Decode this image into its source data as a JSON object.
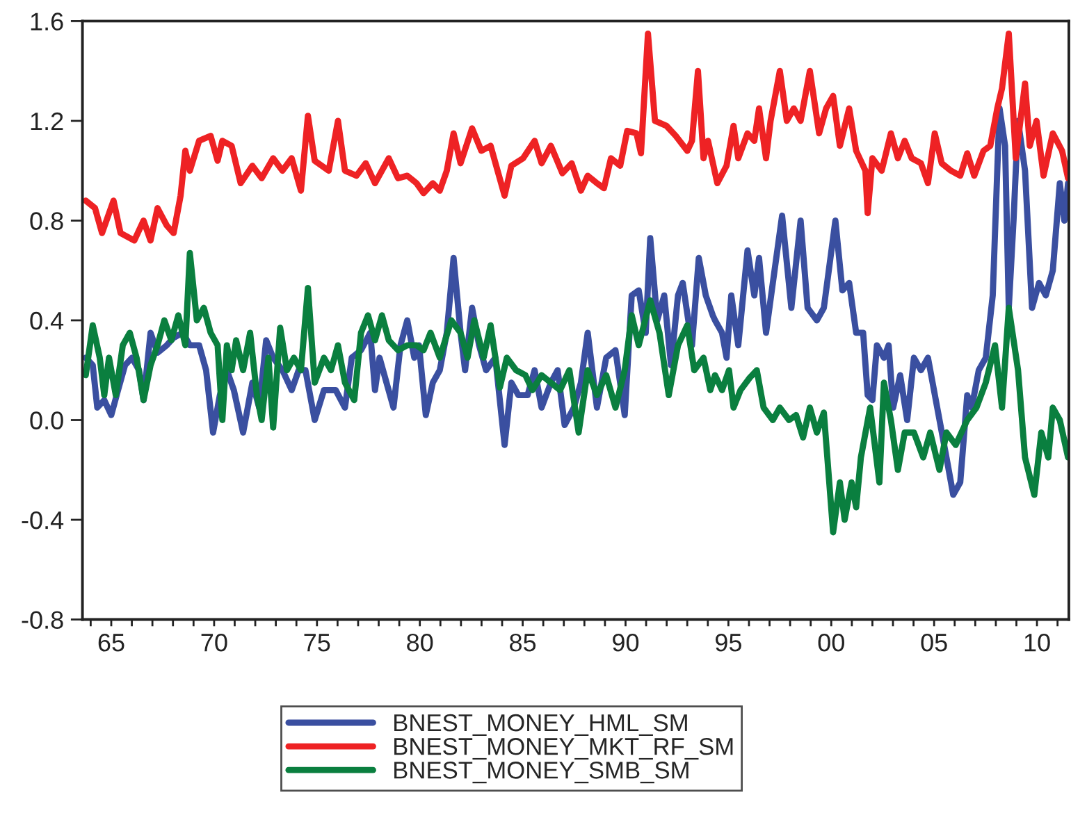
{
  "chart_data": {
    "type": "line",
    "xlim": [
      1963.6,
      2011.55
    ],
    "ylim": [
      -0.8,
      1.6
    ],
    "yticks": [
      {
        "value": -0.8,
        "label": "-0.8"
      },
      {
        "value": -0.4,
        "label": "-0.4"
      },
      {
        "value": 0.0,
        "label": "0.0"
      },
      {
        "value": 0.4,
        "label": "0.4"
      },
      {
        "value": 0.8,
        "label": "0.8"
      },
      {
        "value": 1.2,
        "label": "1.2"
      },
      {
        "value": 1.6,
        "label": "1.6"
      }
    ],
    "xticks": [
      {
        "value": 1964,
        "label": null
      },
      {
        "value": 1965,
        "label": "65"
      },
      {
        "value": 1966,
        "label": null
      },
      {
        "value": 1967,
        "label": null
      },
      {
        "value": 1968,
        "label": null
      },
      {
        "value": 1969,
        "label": null
      },
      {
        "value": 1970,
        "label": "70"
      },
      {
        "value": 1971,
        "label": null
      },
      {
        "value": 1972,
        "label": null
      },
      {
        "value": 1973,
        "label": null
      },
      {
        "value": 1974,
        "label": null
      },
      {
        "value": 1975,
        "label": "75"
      },
      {
        "value": 1976,
        "label": null
      },
      {
        "value": 1977,
        "label": null
      },
      {
        "value": 1978,
        "label": null
      },
      {
        "value": 1979,
        "label": null
      },
      {
        "value": 1980,
        "label": "80"
      },
      {
        "value": 1981,
        "label": null
      },
      {
        "value": 1982,
        "label": null
      },
      {
        "value": 1983,
        "label": null
      },
      {
        "value": 1984,
        "label": null
      },
      {
        "value": 1985,
        "label": "85"
      },
      {
        "value": 1986,
        "label": null
      },
      {
        "value": 1987,
        "label": null
      },
      {
        "value": 1988,
        "label": null
      },
      {
        "value": 1989,
        "label": null
      },
      {
        "value": 1990,
        "label": "90"
      },
      {
        "value": 1991,
        "label": null
      },
      {
        "value": 1992,
        "label": null
      },
      {
        "value": 1993,
        "label": null
      },
      {
        "value": 1994,
        "label": null
      },
      {
        "value": 1995,
        "label": "95"
      },
      {
        "value": 1996,
        "label": null
      },
      {
        "value": 1997,
        "label": null
      },
      {
        "value": 1998,
        "label": null
      },
      {
        "value": 1999,
        "label": null
      },
      {
        "value": 2000,
        "label": "00"
      },
      {
        "value": 2001,
        "label": null
      },
      {
        "value": 2002,
        "label": null
      },
      {
        "value": 2003,
        "label": null
      },
      {
        "value": 2004,
        "label": null
      },
      {
        "value": 2005,
        "label": "05"
      },
      {
        "value": 2006,
        "label": null
      },
      {
        "value": 2007,
        "label": null
      },
      {
        "value": 2008,
        "label": null
      },
      {
        "value": 2009,
        "label": null
      },
      {
        "value": 2010,
        "label": "10"
      },
      {
        "value": 2011,
        "label": null
      }
    ],
    "grid": false,
    "legend": "bottom",
    "line_style": "solid",
    "marker": "none",
    "series": [
      {
        "name": "BNEST_MONEY_HML_SM",
        "color": "#3a4fa0",
        "x": [
          1963.76,
          1964.1,
          1964.32,
          1964.66,
          1965.0,
          1965.33,
          1965.67,
          1966.01,
          1966.35,
          1966.57,
          1966.91,
          1967.25,
          1967.7,
          1968.03,
          1968.48,
          1968.82,
          1969.27,
          1969.61,
          1969.95,
          1970.28,
          1970.62,
          1970.96,
          1971.41,
          1971.86,
          1972.19,
          1972.53,
          1972.87,
          1973.32,
          1973.77,
          1974.11,
          1974.44,
          1974.89,
          1975.34,
          1975.91,
          1976.36,
          1976.69,
          1977.14,
          1977.59,
          1977.82,
          1978.04,
          1978.38,
          1978.72,
          1979.06,
          1979.39,
          1979.73,
          1979.96,
          1980.29,
          1980.63,
          1980.97,
          1981.31,
          1981.64,
          1981.98,
          1982.2,
          1982.54,
          1982.88,
          1983.22,
          1983.67,
          1984.12,
          1984.45,
          1984.79,
          1985.24,
          1985.58,
          1985.92,
          1986.37,
          1986.7,
          1987.04,
          1987.49,
          1987.83,
          1988.16,
          1988.61,
          1989.06,
          1989.51,
          1989.96,
          1990.3,
          1990.64,
          1990.98,
          1991.2,
          1991.54,
          1991.88,
          1992.21,
          1992.55,
          1992.78,
          1993.23,
          1993.56,
          1993.9,
          1994.24,
          1994.35,
          1994.69,
          1994.91,
          1995.14,
          1995.48,
          1995.93,
          1996.26,
          1996.49,
          1996.83,
          1997.16,
          1997.61,
          1998.06,
          1998.51,
          1998.85,
          1999.3,
          1999.64,
          2000.2,
          2000.54,
          2000.87,
          2001.21,
          2001.55,
          2001.77,
          2002.0,
          2002.22,
          2002.56,
          2002.79,
          2003.01,
          2003.35,
          2003.69,
          2004.02,
          2004.36,
          2004.7,
          2005.15,
          2005.6,
          2005.93,
          2006.27,
          2006.61,
          2006.83,
          2007.17,
          2007.51,
          2007.85,
          2008.18,
          2008.45,
          2008.63,
          2008.86,
          2009.08,
          2009.42,
          2009.76,
          2010.1,
          2010.43,
          2010.77,
          2011.11,
          2011.33,
          2011.51
        ],
        "values": [
          0.25,
          0.22,
          0.05,
          0.08,
          0.02,
          0.12,
          0.22,
          0.25,
          0.2,
          0.08,
          0.35,
          0.27,
          0.3,
          0.33,
          0.35,
          0.3,
          0.3,
          0.2,
          -0.05,
          0.1,
          0.2,
          0.12,
          -0.05,
          0.15,
          0.05,
          0.32,
          0.25,
          0.2,
          0.12,
          0.2,
          0.2,
          0.0,
          0.12,
          0.12,
          0.05,
          0.25,
          0.28,
          0.35,
          0.12,
          0.25,
          0.15,
          0.05,
          0.3,
          0.4,
          0.25,
          0.3,
          0.02,
          0.15,
          0.2,
          0.35,
          0.65,
          0.35,
          0.2,
          0.45,
          0.3,
          0.2,
          0.25,
          -0.1,
          0.15,
          0.1,
          0.1,
          0.2,
          0.05,
          0.15,
          0.2,
          -0.02,
          0.05,
          0.15,
          0.35,
          0.05,
          0.25,
          0.28,
          0.02,
          0.5,
          0.52,
          0.35,
          0.73,
          0.4,
          0.5,
          0.22,
          0.5,
          0.55,
          0.3,
          0.65,
          0.5,
          0.42,
          0.4,
          0.35,
          0.25,
          0.5,
          0.3,
          0.68,
          0.5,
          0.65,
          0.35,
          0.55,
          0.82,
          0.45,
          0.8,
          0.45,
          0.4,
          0.45,
          0.8,
          0.52,
          0.55,
          0.35,
          0.35,
          0.1,
          0.08,
          0.3,
          0.25,
          0.3,
          0.05,
          0.18,
          0.0,
          0.25,
          0.2,
          0.25,
          0.05,
          -0.15,
          -0.3,
          -0.25,
          0.1,
          0.05,
          0.2,
          0.25,
          0.5,
          1.25,
          1.1,
          0.45,
          0.8,
          1.2,
          1.0,
          0.45,
          0.55,
          0.5,
          0.6,
          0.95,
          0.8,
          0.95
        ]
      },
      {
        "name": "BNEST_MONEY_MKT_RF_SM",
        "color": "#ee2224",
        "x": [
          1963.76,
          1964.21,
          1964.55,
          1965.11,
          1965.45,
          1966.12,
          1966.57,
          1966.91,
          1967.25,
          1967.7,
          1968.03,
          1968.37,
          1968.6,
          1968.82,
          1969.27,
          1969.83,
          1970.17,
          1970.4,
          1970.85,
          1971.29,
          1971.86,
          1972.31,
          1972.87,
          1973.32,
          1973.77,
          1974.22,
          1974.56,
          1974.89,
          1975.57,
          1976.02,
          1976.36,
          1976.92,
          1977.37,
          1977.82,
          1978.49,
          1978.94,
          1979.39,
          1979.84,
          1980.18,
          1980.63,
          1980.97,
          1981.31,
          1981.64,
          1981.98,
          1982.54,
          1982.99,
          1983.44,
          1983.78,
          1984.12,
          1984.45,
          1985.02,
          1985.58,
          1985.92,
          1986.37,
          1986.93,
          1987.38,
          1987.83,
          1988.16,
          1988.61,
          1988.95,
          1989.29,
          1989.74,
          1990.08,
          1990.53,
          1990.75,
          1991.09,
          1991.43,
          1991.99,
          1992.44,
          1993.0,
          1993.23,
          1993.52,
          1993.79,
          1994.01,
          1994.46,
          1994.91,
          1995.25,
          1995.48,
          1995.93,
          1996.26,
          1996.49,
          1996.83,
          1997.05,
          1997.5,
          1997.84,
          1998.18,
          1998.51,
          1998.96,
          1999.41,
          1999.75,
          2000.09,
          2000.42,
          2000.87,
          2001.21,
          2001.66,
          2001.77,
          2002.0,
          2002.45,
          2002.9,
          2003.24,
          2003.57,
          2003.91,
          2004.36,
          2004.7,
          2005.03,
          2005.37,
          2005.82,
          2006.27,
          2006.61,
          2006.95,
          2007.4,
          2007.73,
          2008.07,
          2008.3,
          2008.63,
          2008.97,
          2009.42,
          2009.65,
          2009.98,
          2010.32,
          2010.77,
          2011.22,
          2011.51
        ],
        "values": [
          0.88,
          0.85,
          0.75,
          0.88,
          0.75,
          0.72,
          0.8,
          0.72,
          0.85,
          0.78,
          0.75,
          0.9,
          1.08,
          1.0,
          1.12,
          1.14,
          1.04,
          1.12,
          1.1,
          0.95,
          1.02,
          0.97,
          1.05,
          1.0,
          1.05,
          0.92,
          1.22,
          1.04,
          1.0,
          1.2,
          1.0,
          0.98,
          1.03,
          0.95,
          1.05,
          0.97,
          0.98,
          0.95,
          0.91,
          0.95,
          0.92,
          1.0,
          1.15,
          1.03,
          1.17,
          1.08,
          1.1,
          1.0,
          0.9,
          1.02,
          1.05,
          1.12,
          1.03,
          1.1,
          0.99,
          1.03,
          0.92,
          0.98,
          0.95,
          0.93,
          1.05,
          1.02,
          1.16,
          1.15,
          1.07,
          1.55,
          1.2,
          1.18,
          1.14,
          1.08,
          1.12,
          1.4,
          1.05,
          1.12,
          0.95,
          1.02,
          1.18,
          1.05,
          1.15,
          1.12,
          1.25,
          1.05,
          1.2,
          1.4,
          1.2,
          1.25,
          1.2,
          1.4,
          1.15,
          1.25,
          1.3,
          1.1,
          1.25,
          1.08,
          1.0,
          0.83,
          1.05,
          1.0,
          1.15,
          1.05,
          1.12,
          1.05,
          1.03,
          0.95,
          1.15,
          1.03,
          1.0,
          0.98,
          1.07,
          0.98,
          1.08,
          1.1,
          1.25,
          1.33,
          1.55,
          1.05,
          1.35,
          1.1,
          1.2,
          0.98,
          1.15,
          1.08,
          0.97
        ]
      },
      {
        "name": "BNEST_MONEY_SMB_SM",
        "color": "#0a7f3f",
        "x": [
          1963.76,
          1964.1,
          1964.44,
          1964.66,
          1964.89,
          1965.22,
          1965.56,
          1965.9,
          1966.23,
          1966.57,
          1966.91,
          1967.25,
          1967.58,
          1967.92,
          1968.26,
          1968.6,
          1968.82,
          1969.16,
          1969.5,
          1969.83,
          1970.17,
          1970.4,
          1970.62,
          1970.85,
          1971.07,
          1971.41,
          1971.75,
          1972.08,
          1972.31,
          1972.64,
          1972.87,
          1973.21,
          1973.54,
          1973.88,
          1974.22,
          1974.56,
          1974.89,
          1975.34,
          1975.68,
          1976.02,
          1976.36,
          1976.81,
          1977.14,
          1977.48,
          1977.82,
          1978.16,
          1978.49,
          1978.94,
          1979.39,
          1979.84,
          1980.18,
          1980.52,
          1980.97,
          1981.53,
          1981.98,
          1982.32,
          1982.65,
          1983.1,
          1983.44,
          1983.89,
          1984.23,
          1984.68,
          1985.13,
          1985.47,
          1985.92,
          1986.37,
          1986.82,
          1987.27,
          1987.72,
          1988.16,
          1988.61,
          1989.06,
          1989.51,
          1989.96,
          1990.3,
          1990.64,
          1991.2,
          1991.65,
          1992.1,
          1992.55,
          1993.0,
          1993.34,
          1993.79,
          1994.12,
          1994.35,
          1994.69,
          1995.03,
          1995.25,
          1995.59,
          1996.04,
          1996.38,
          1996.71,
          1997.16,
          1997.5,
          1997.95,
          1998.29,
          1998.63,
          1998.96,
          1999.3,
          1999.64,
          2000.09,
          2000.42,
          2000.65,
          2000.99,
          2001.21,
          2001.44,
          2001.89,
          2002.34,
          2002.56,
          2002.9,
          2003.24,
          2003.57,
          2004.02,
          2004.47,
          2004.81,
          2005.26,
          2005.6,
          2006.05,
          2006.61,
          2007.06,
          2007.51,
          2007.96,
          2008.3,
          2008.63,
          2009.08,
          2009.42,
          2009.87,
          2010.21,
          2010.55,
          2010.77,
          2011.11,
          2011.51
        ],
        "values": [
          0.18,
          0.38,
          0.25,
          0.1,
          0.25,
          0.1,
          0.3,
          0.35,
          0.25,
          0.08,
          0.22,
          0.3,
          0.4,
          0.32,
          0.42,
          0.3,
          0.67,
          0.4,
          0.45,
          0.35,
          0.3,
          0.0,
          0.3,
          0.2,
          0.32,
          0.2,
          0.35,
          0.1,
          0.0,
          0.25,
          -0.03,
          0.37,
          0.2,
          0.25,
          0.2,
          0.53,
          0.15,
          0.25,
          0.2,
          0.3,
          0.15,
          0.08,
          0.35,
          0.42,
          0.32,
          0.42,
          0.32,
          0.28,
          0.3,
          0.3,
          0.28,
          0.35,
          0.25,
          0.4,
          0.35,
          0.25,
          0.4,
          0.25,
          0.38,
          0.13,
          0.25,
          0.2,
          0.18,
          0.12,
          0.18,
          0.15,
          0.12,
          0.2,
          -0.05,
          0.2,
          0.1,
          0.18,
          0.05,
          0.2,
          0.42,
          0.3,
          0.48,
          0.35,
          0.1,
          0.3,
          0.38,
          0.2,
          0.25,
          0.12,
          0.18,
          0.12,
          0.2,
          0.05,
          0.12,
          0.17,
          0.2,
          0.05,
          0.0,
          0.05,
          0.0,
          0.02,
          -0.07,
          0.05,
          -0.05,
          0.03,
          -0.45,
          -0.25,
          -0.4,
          -0.25,
          -0.35,
          -0.15,
          0.05,
          -0.25,
          0.15,
          0.0,
          -0.2,
          -0.05,
          -0.05,
          -0.15,
          -0.05,
          -0.2,
          -0.05,
          -0.1,
          0.0,
          0.05,
          0.15,
          0.3,
          0.05,
          0.45,
          0.2,
          -0.15,
          -0.3,
          -0.05,
          -0.15,
          0.05,
          0.0,
          -0.15
        ]
      }
    ]
  }
}
